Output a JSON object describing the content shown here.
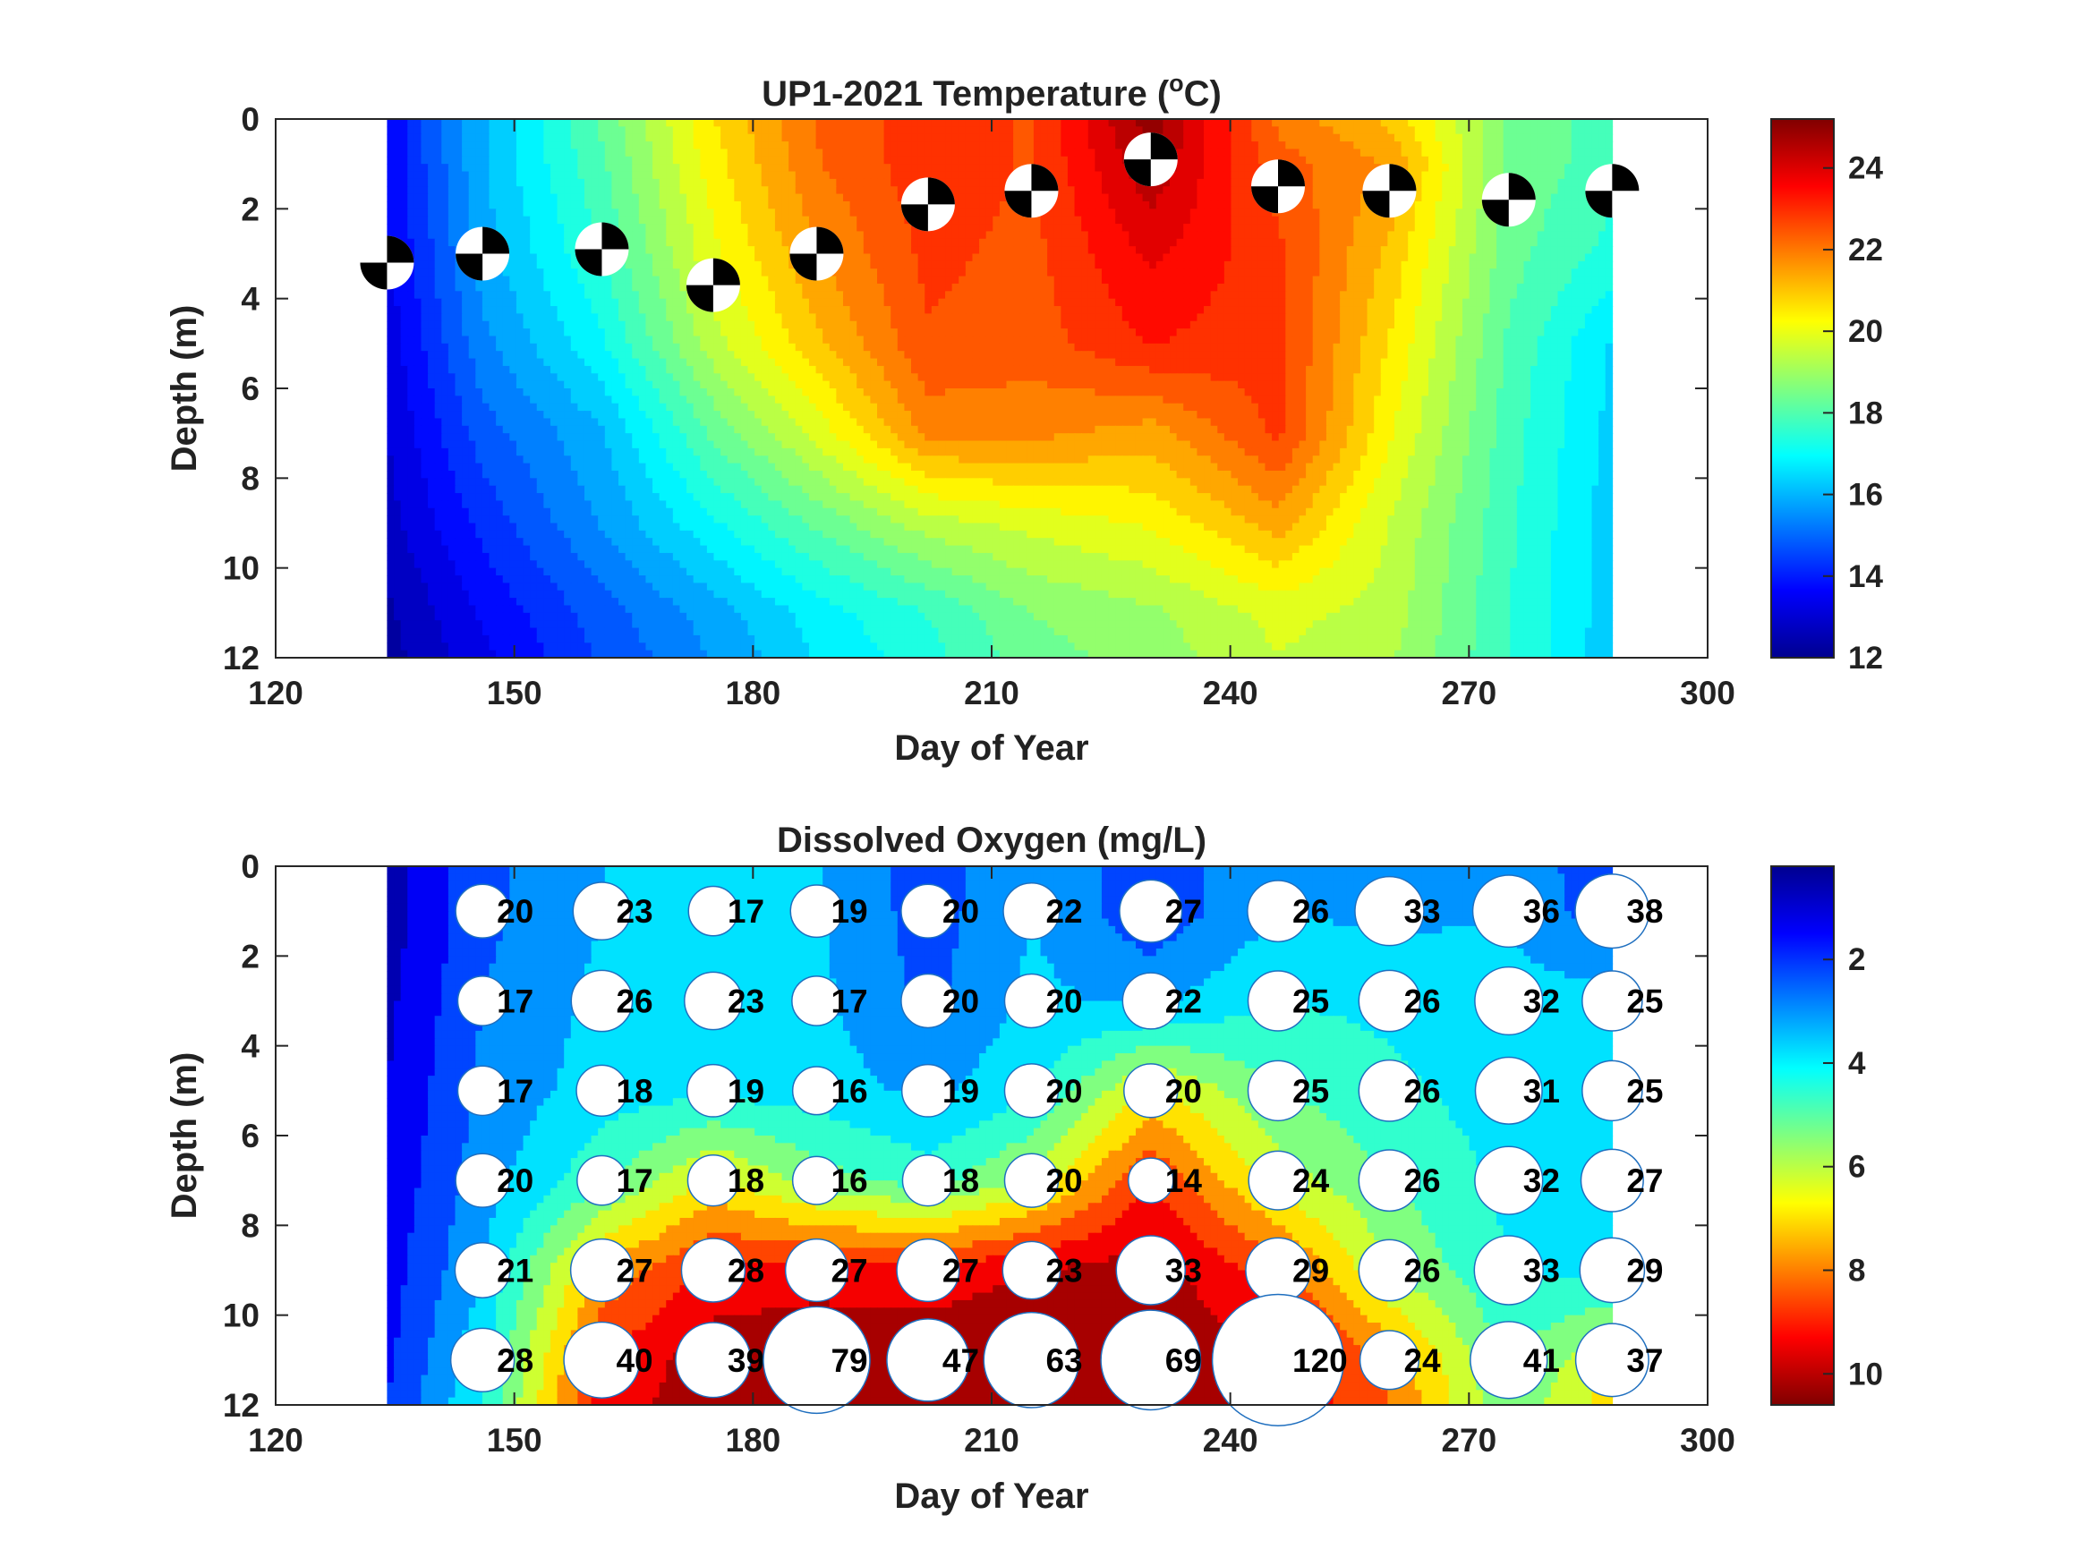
{
  "chart_data": [
    {
      "type": "heatmap",
      "title": "UP1-2021 Temperature (",
      "title_sup": "o",
      "title_end": "C)",
      "xlabel": "Day of Year",
      "ylabel": "Depth (m)",
      "xlim": [
        120,
        300
      ],
      "ylim": [
        0,
        12
      ],
      "y_reversed": true,
      "xticks": [
        "120",
        "150",
        "180",
        "210",
        "240",
        "270",
        "300"
      ],
      "yticks": [
        "0",
        "2",
        "4",
        "6",
        "8",
        "10",
        "12"
      ],
      "colorbar": {
        "min": 12,
        "max": 25.2,
        "ticks": [
          "12",
          "14",
          "16",
          "18",
          "20",
          "22",
          "24"
        ],
        "colormap": "jet"
      },
      "x": [
        134,
        146,
        161,
        175,
        188,
        202,
        215,
        230,
        246,
        260,
        275,
        288
      ],
      "depths": [
        0,
        1,
        3,
        5,
        7,
        9,
        11,
        12
      ],
      "z": [
        [
          13.6,
          16.0,
          18.2,
          20.6,
          22.2,
          23.0,
          22.6,
          25.0,
          22.0,
          21.0,
          18.5,
          17.8
        ],
        [
          13.6,
          16.0,
          18.0,
          20.4,
          22.1,
          23.0,
          22.6,
          24.6,
          22.4,
          21.6,
          18.5,
          17.8
        ],
        [
          13.4,
          15.8,
          17.6,
          20.0,
          21.6,
          22.8,
          22.5,
          23.8,
          22.8,
          21.0,
          18.3,
          17.4
        ],
        [
          13.2,
          15.4,
          17.0,
          19.4,
          21.0,
          22.6,
          22.4,
          23.2,
          22.8,
          20.6,
          18.0,
          16.5
        ],
        [
          13.0,
          14.8,
          16.0,
          18.2,
          19.8,
          21.8,
          21.8,
          21.4,
          22.8,
          20.2,
          17.8,
          16.4
        ],
        [
          12.8,
          14.2,
          15.6,
          17.0,
          18.2,
          19.4,
          19.8,
          20.2,
          21.4,
          19.6,
          17.7,
          16.3
        ],
        [
          12.4,
          13.6,
          14.8,
          15.8,
          16.8,
          17.6,
          18.6,
          19.0,
          19.8,
          19.4,
          17.6,
          16.3
        ],
        [
          12.3,
          13.4,
          14.6,
          15.6,
          16.6,
          17.4,
          18.4,
          18.8,
          19.6,
          19.2,
          17.6,
          16.2
        ]
      ],
      "secchi_depths": [
        3.2,
        3.0,
        2.9,
        3.7,
        3.0,
        1.9,
        1.6,
        0.9,
        1.5,
        1.6,
        1.8,
        1.6
      ]
    },
    {
      "type": "heatmap",
      "title": "Dissolved Oxygen (mg/L)",
      "xlabel": "Day of Year",
      "ylabel": "Depth (m)",
      "xlim": [
        120,
        300
      ],
      "ylim": [
        0,
        12
      ],
      "y_reversed": true,
      "xticks": [
        "120",
        "150",
        "180",
        "210",
        "240",
        "270",
        "300"
      ],
      "yticks": [
        "0",
        "2",
        "4",
        "6",
        "8",
        "10",
        "12"
      ],
      "colorbar": {
        "min": 0.2,
        "max": 10.6,
        "ticks": [
          "2",
          "4",
          "6",
          "8",
          "10"
        ],
        "colormap": "jet_r"
      },
      "x": [
        134,
        146,
        161,
        175,
        188,
        202,
        215,
        230,
        246,
        260,
        275,
        288
      ],
      "depths": [
        0,
        1,
        3,
        5,
        7,
        9,
        11,
        12
      ],
      "z": [
        [
          10.2,
          8.4,
          7.4,
          7.3,
          7.3,
          8.6,
          7.4,
          8.8,
          7.4,
          7.6,
          7.4,
          9.0
        ],
        [
          10.2,
          8.4,
          7.4,
          7.3,
          7.3,
          8.6,
          7.4,
          8.8,
          7.4,
          7.6,
          7.4,
          8.8
        ],
        [
          10.0,
          8.2,
          7.2,
          7.2,
          7.2,
          8.4,
          7.2,
          7.6,
          6.6,
          6.8,
          7.2,
          7.0
        ],
        [
          9.8,
          8.0,
          7.0,
          6.8,
          7.0,
          7.6,
          6.8,
          4.0,
          5.8,
          6.4,
          7.0,
          7.0
        ],
        [
          9.6,
          7.8,
          6.0,
          4.0,
          5.4,
          6.2,
          4.8,
          1.8,
          4.6,
          5.8,
          6.8,
          7.0
        ],
        [
          9.4,
          7.4,
          3.2,
          1.6,
          1.4,
          1.6,
          1.0,
          0.6,
          2.2,
          5.0,
          6.6,
          6.8
        ],
        [
          9.2,
          6.8,
          1.8,
          0.5,
          0.3,
          0.2,
          0.2,
          0.2,
          1.0,
          2.8,
          6.0,
          4.2
        ],
        [
          9.0,
          6.6,
          1.4,
          0.5,
          0.3,
          0.2,
          0.2,
          0.2,
          1.0,
          2.6,
          5.6,
          3.8
        ]
      ],
      "points": {
        "days": [
          146,
          161,
          175,
          188,
          202,
          215,
          230,
          246,
          260,
          275,
          288
        ],
        "depths": [
          1,
          3,
          5,
          7,
          9,
          11
        ],
        "labels": [
          [
            "20",
            "23",
            "17",
            "19",
            "20",
            "22",
            "27",
            "26",
            "33",
            "36",
            "38"
          ],
          [
            "17",
            "26",
            "23",
            "17",
            "20",
            "20",
            "22",
            "25",
            "26",
            "32",
            "25"
          ],
          [
            "17",
            "18",
            "19",
            "16",
            "19",
            "20",
            "20",
            "25",
            "26",
            "31",
            "25"
          ],
          [
            "20",
            "17",
            "18",
            "16",
            "18",
            "20",
            "14",
            "24",
            "26",
            "32",
            "27"
          ],
          [
            "21",
            "27",
            "28",
            "27",
            "27",
            "23",
            "33",
            "29",
            "26",
            "33",
            "29"
          ],
          [
            "28",
            "40",
            "39",
            "79",
            "47",
            "63",
            "69",
            "120",
            "24",
            "41",
            "37"
          ]
        ]
      }
    }
  ]
}
